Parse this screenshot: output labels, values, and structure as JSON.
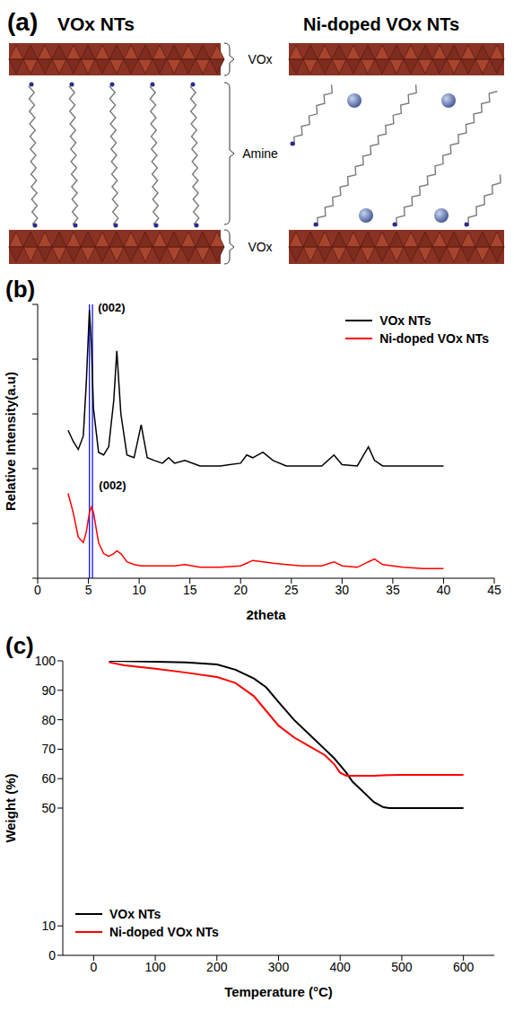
{
  "diagram": {
    "panel": "(a)",
    "left": {
      "title": "VOx NTs"
    },
    "right": {
      "title": "Ni-doped VOx NTs"
    },
    "labels": [
      "VOx",
      "Amine",
      "VOx"
    ]
  },
  "chart_data": [
    {
      "panel": "(b)",
      "type": "line",
      "xlabel": "2theta",
      "ylabel": "Relative Intensity(a.u)",
      "x": [
        3,
        3.5,
        4,
        4.5,
        4.8,
        5.1,
        5.3,
        5.5,
        6,
        6.5,
        7,
        7.5,
        7.8,
        8.2,
        8.8,
        9.5,
        10.2,
        10.8,
        11.5,
        12.3,
        12.9,
        13.5,
        14.5,
        16,
        18,
        20,
        20.6,
        21.2,
        22.2,
        23.2,
        24.5,
        26,
        28,
        29.2,
        30,
        31.5,
        32.6,
        33.2,
        34,
        36,
        38,
        40
      ],
      "series": [
        {
          "name": "VOx NTs",
          "color": "#000000",
          "values": [
            54,
            50,
            47,
            52,
            72,
            98,
            85,
            62,
            46,
            45,
            48,
            65,
            83,
            60,
            45,
            44,
            56,
            44,
            43,
            42,
            44,
            42,
            43,
            41,
            41,
            42,
            45,
            44,
            46,
            43,
            41,
            41,
            41,
            45,
            41.5,
            41,
            48,
            43,
            41,
            41,
            41,
            41
          ]
        },
        {
          "name": "Ni-doped VOx NTs",
          "color": "#ff0000",
          "values": [
            31,
            24,
            15,
            13,
            17,
            24,
            26,
            24,
            13,
            9,
            8,
            9,
            10,
            9,
            6,
            5,
            4.5,
            4.5,
            4.5,
            4.5,
            4.5,
            4.5,
            5,
            4,
            4,
            4.5,
            5.5,
            6.5,
            6,
            5.5,
            5,
            4.5,
            4.5,
            6,
            4.5,
            4,
            6,
            7,
            5,
            4,
            3.5,
            3.5
          ]
        }
      ],
      "xlim": [
        0,
        45
      ],
      "xticks": [
        0,
        5,
        10,
        15,
        20,
        25,
        30,
        35,
        40,
        45
      ],
      "ylim": [
        0,
        100
      ],
      "yticks": [
        0,
        20,
        40,
        60,
        80,
        100
      ],
      "tick_labels": "x",
      "grid": false,
      "legend": "top-right",
      "reference_lines": [
        {
          "x": 5.1,
          "color": "#0000ff"
        },
        {
          "x": 5.4,
          "color": "#0000ff"
        }
      ],
      "annotations": [
        {
          "text": "(002)",
          "x": 5.5,
          "y": 99
        },
        {
          "text": "(002)",
          "x": 5.6,
          "y": 34
        }
      ]
    },
    {
      "panel": "(c)",
      "type": "line",
      "xlabel": "Temperature (°C)",
      "ylabel": "Weight (%)",
      "x": [
        25,
        50,
        100,
        150,
        200,
        230,
        260,
        280,
        300,
        325,
        350,
        375,
        390,
        400,
        410,
        420,
        440,
        455,
        470,
        480,
        500,
        550,
        600
      ],
      "series": [
        {
          "name": "VOx NTs",
          "color": "#000000",
          "values": [
            100,
            99.9,
            99.7,
            99.5,
            98.8,
            97,
            94,
            91,
            86,
            80,
            75,
            70,
            67,
            64.5,
            62,
            59,
            55,
            52,
            50.3,
            50,
            50,
            50,
            50
          ]
        },
        {
          "name": "Ni-doped VOx NTs",
          "color": "#ff0000",
          "values": [
            99.5,
            98.5,
            97.3,
            96,
            94.5,
            92.5,
            88,
            83,
            78,
            74,
            71,
            68,
            65,
            62,
            61,
            61,
            61,
            61,
            61.1,
            61.2,
            61.3,
            61.3,
            61.3
          ]
        }
      ],
      "xlim": [
        -50,
        650
      ],
      "xticks": [
        0,
        100,
        200,
        300,
        400,
        500,
        600
      ],
      "ylim": [
        0,
        100
      ],
      "yticks": [
        0,
        10,
        50,
        60,
        70,
        80,
        90,
        100
      ],
      "grid": false,
      "legend": "bottom-left"
    }
  ]
}
